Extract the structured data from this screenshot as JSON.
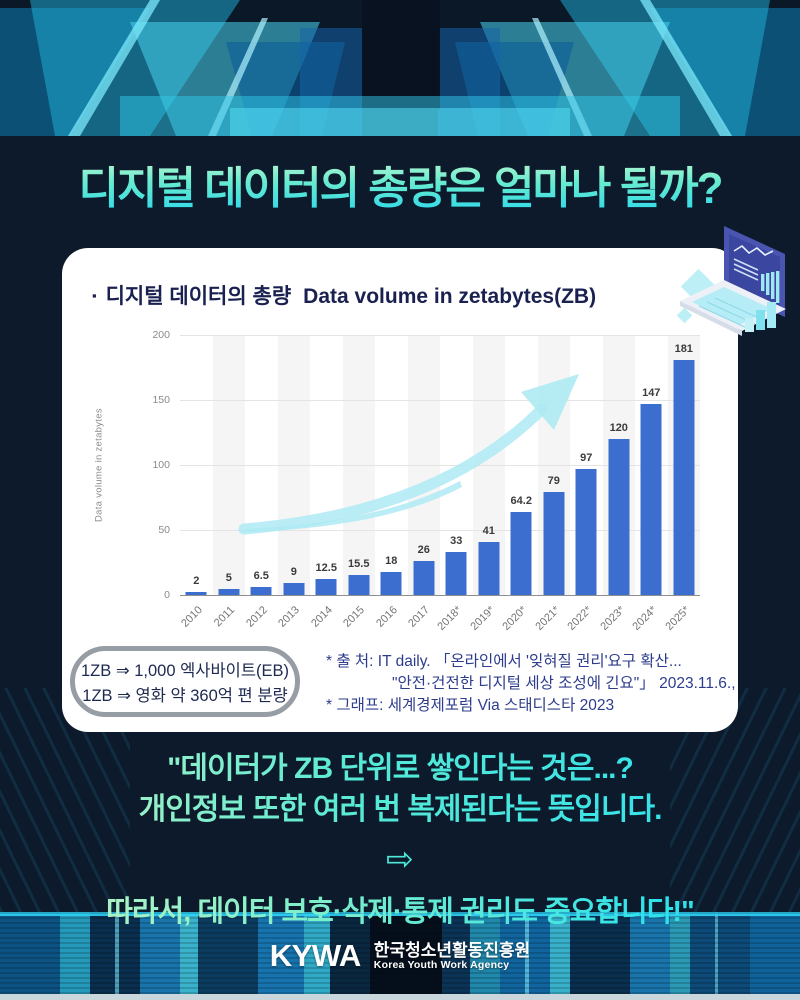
{
  "page": {
    "title": "디지털 데이터의 총량은 얼마나 될까?"
  },
  "card": {
    "bullet": "▪",
    "heading_ko": "디지털 데이터의 총량",
    "heading_en": "Data volume in zetabytes(ZB)"
  },
  "chart_data": {
    "type": "bar",
    "title": "디지털 데이터의 총량 Data volume in zetabytes(ZB)",
    "ylabel": "Data volume in zetabytes",
    "xlabel": "",
    "ylim": [
      0,
      200
    ],
    "yticks": [
      0,
      50,
      100,
      150,
      200
    ],
    "grid": true,
    "categories": [
      "2010",
      "2011",
      "2012",
      "2013",
      "2014",
      "2015",
      "2016",
      "2017",
      "2018*",
      "2019*",
      "2020*",
      "2021*",
      "2022*",
      "2023*",
      "2024*",
      "2025*"
    ],
    "values": [
      2,
      5,
      6.5,
      9,
      12.5,
      15.5,
      18,
      26,
      33,
      41,
      64.2,
      79,
      97,
      120,
      147,
      181
    ],
    "bar_color": "#3c6ed0",
    "annotation": "upward trend arrow overlay"
  },
  "pill": {
    "line1": "1ZB ⇒ 1,000 엑사바이트(EB)",
    "line2": "1ZB ⇒ 영화 약 360억 편 분량"
  },
  "source": {
    "line1": "* 출   처:  IT daily. 「온라인에서 '잊혀질 권리'요구 확산...",
    "line2": "\"안전·건전한 디지털 세상 조성에 긴요\"」 2023.11.6.,",
    "line3": "* 그래프: 세계경제포럼 Via 스태디스타 2023"
  },
  "message": {
    "line1": "\"데이터가 ZB 단위로 쌓인다는 것은...?",
    "line2": "개인정보 또한 여러 번 복제된다는 뜻입니다.",
    "arrow": "⇨",
    "line3": "따라서, 데이터 보호·삭제·통제 권리도 중요합니다!\""
  },
  "footer": {
    "logo": "KYWA",
    "org_ko": "한국청소년활동진흥원",
    "org_en": "Korea Youth Work Agency"
  },
  "icons": {
    "laptop": "laptop-analytics-illustration",
    "trend_arrow": "up-right-trend-arrow",
    "bullet": "square-bullet-icon"
  },
  "colors": {
    "background_navy": "#0c1a2b",
    "card_white": "#ffffff",
    "heading_navy": "#1a2150",
    "bar_blue": "#3c6ed0",
    "trend_arrow_cyan": "#aeeaf3",
    "title_gradient_top": "#c9f8d2",
    "title_gradient_bottom": "#2fd9ea",
    "message_mint": "#b2f3c2",
    "message_cyan": "#35e2ea",
    "pill_border_gray": "#969da4",
    "source_indigo": "#2e3c8e",
    "footer_strip": "#c9d6dc",
    "band_cyan": "#2fc8ea"
  }
}
